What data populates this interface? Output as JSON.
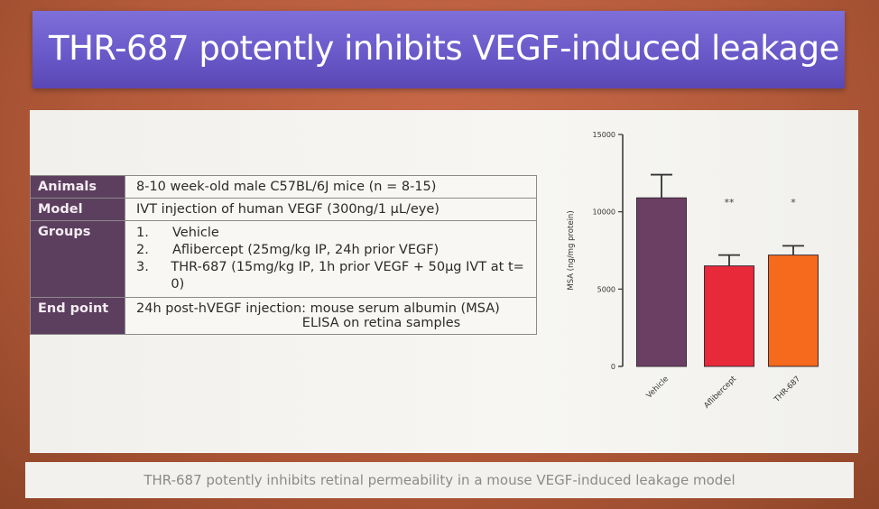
{
  "slide": {
    "title": "THR-687 potently inhibits VEGF-induced leakage",
    "caption": "THR-687 potently inhibits retinal permeability in a mouse VEGF-induced leakage model"
  },
  "table": {
    "animals_label": "Animals",
    "animals_value": "8-10 week-old male C57BL/6J mice (n = 8-15)",
    "model_label": "Model",
    "model_value": "IVT injection of human VEGF (300ng/1 µL/eye)",
    "groups_label": "Groups",
    "groups": [
      {
        "num": "1.",
        "text": "Vehicle"
      },
      {
        "num": "2.",
        "text": "Aflibercept (25mg/kg IP,  24h prior VEGF)"
      },
      {
        "num": "3.",
        "text": "THR-687 (15mg/kg IP,  1h prior VEGF + 50µg IVT at t= 0)"
      }
    ],
    "endpoint_label": "End point",
    "endpoint_line1": "24h post-hVEGF injection: mouse serum albumin (MSA)",
    "endpoint_line2": "ELISA on retina samples"
  },
  "chart_data": {
    "type": "bar",
    "categories": [
      "Vehicle",
      "Aflibercept",
      "THR-687"
    ],
    "values": [
      10900,
      6500,
      7200
    ],
    "errors": [
      1500,
      700,
      600
    ],
    "significance": [
      "",
      "**",
      "*"
    ],
    "ylabel": "MSA (ng/mg protein)",
    "ylim": [
      0,
      15000
    ],
    "yticks": [
      0,
      5000,
      10000,
      15000
    ],
    "colors": [
      "#6b3f63",
      "#e8293a",
      "#f56a1c"
    ],
    "grid": false
  }
}
